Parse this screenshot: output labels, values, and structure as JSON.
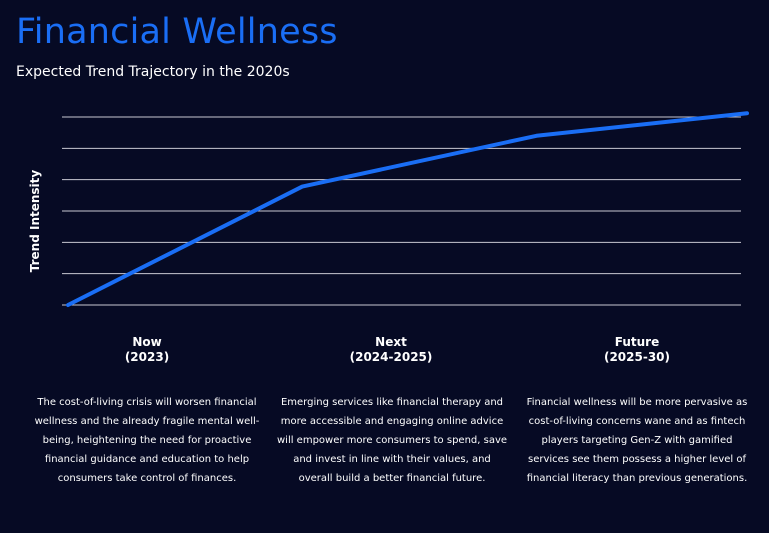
{
  "header": {
    "title": "Financial Wellness",
    "subtitle": "Expected Trend Trajectory in the 2020s"
  },
  "chart_data": {
    "type": "line",
    "ylabel": "Trend Intensity",
    "xlim": [
      0,
      1
    ],
    "ylim": [
      0,
      1
    ],
    "grid": true,
    "gridlines": 7,
    "line_color": "#1a6ef5",
    "series": [
      {
        "x": [
          0,
          0.345,
          0.69,
          1.0
        ],
        "values": [
          0.0,
          0.63,
          0.9,
          1.02
        ]
      }
    ]
  },
  "phases": [
    {
      "title": "Now",
      "period": "(2023)",
      "description": "The cost-of-living crisis will worsen financial wellness and the already fragile mental well-being, heightening the need for proactive financial guidance and education to help consumers take control of finances."
    },
    {
      "title": "Next",
      "period": "(2024-2025)",
      "description": "Emerging services like financial therapy and more accessible and engaging online advice will empower more consumers to spend, save and invest in line with their values, and overall build a better financial future."
    },
    {
      "title": "Future",
      "period": "(2025-30)",
      "description": "Financial wellness will be more pervasive as cost-of-living concerns wane and as fintech players targeting Gen-Z with gamified services see them possess a higher level of financial literacy than previous generations."
    }
  ],
  "colors": {
    "background": "#060a24",
    "accent": "#1a6ef5",
    "grid": "#c8c8d2"
  }
}
